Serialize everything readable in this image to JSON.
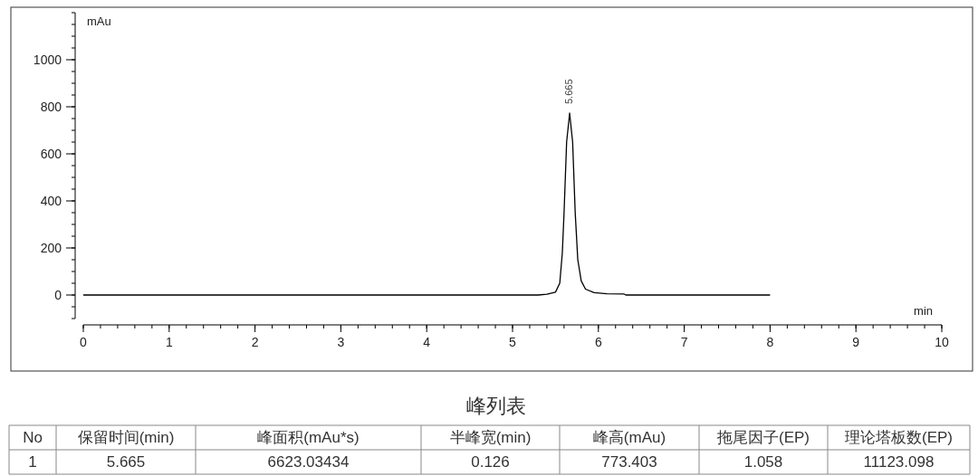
{
  "chart_data": [
    {
      "type": "line",
      "xlabel": "min",
      "ylabel": "mAu",
      "xlim": [
        0,
        10
      ],
      "xticks": [
        0,
        1,
        2,
        3,
        4,
        5,
        6,
        7,
        8,
        9,
        10
      ],
      "ylim": [
        -100,
        1200
      ],
      "yticks": [
        0,
        200,
        400,
        600,
        800,
        1000
      ],
      "grid": false,
      "marker": "none",
      "line_style": "solid",
      "series": [
        {
          "color": "#000000",
          "x": [
            0,
            1,
            2,
            3,
            4,
            5,
            5.3,
            5.4,
            5.5,
            5.55,
            5.58,
            5.6,
            5.63,
            5.665,
            5.7,
            5.73,
            5.76,
            5.8,
            5.85,
            5.95,
            6.1,
            6.3,
            6.32,
            7,
            8
          ],
          "values": [
            0,
            0,
            0,
            0,
            0,
            0,
            0,
            3,
            12,
            50,
            180,
            350,
            650,
            773,
            650,
            350,
            150,
            60,
            25,
            10,
            5,
            4,
            0,
            0,
            0
          ]
        }
      ],
      "annotations": [
        {
          "text": "5.665",
          "x": 5.665,
          "y": 773
        }
      ]
    },
    {
      "type": "other",
      "title": "峰列表",
      "categories": [
        "No",
        "保留时间(min)",
        "峰面积(mAu*s)",
        "半峰宽(min)",
        "峰高(mAu)",
        "拖尾因子(EP)",
        "理论塔板数(EP)"
      ],
      "values": [
        1,
        5.665,
        6623.03434,
        0.126,
        773.403,
        1.058,
        11123.098
      ],
      "data_labels": true
    }
  ]
}
